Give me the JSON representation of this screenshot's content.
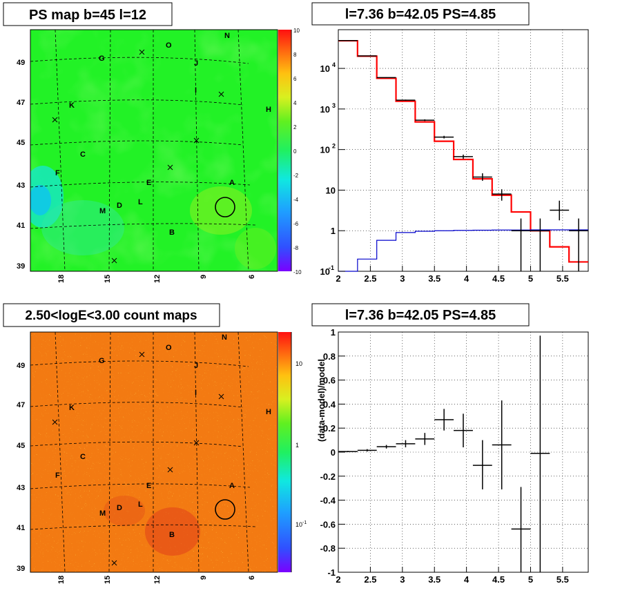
{
  "panels": {
    "ps_map_title": "PS map b=45 l=12",
    "count_map_title": "2.50<logE<3.00 count maps",
    "spectrum_title": "l=7.36 b=42.05 PS=4.85",
    "residual_title": "l=7.36 b=42.05 PS=4.85"
  },
  "colors": {
    "model": "#ff0000",
    "data": "#000000",
    "background_model": "#0000cc",
    "grid": "#000000",
    "ps_map_field": "#1cf21c",
    "count_map_field": "#f06a10"
  },
  "chart_data": [
    {
      "type": "heatmap",
      "id": "ps_map",
      "title": "PS map b=45 l=12",
      "x_ticks": [
        "18",
        "15",
        "12",
        "9",
        "6"
      ],
      "y_ticks": [
        "39",
        "41",
        "43",
        "45",
        "47",
        "49"
      ],
      "colorbar": {
        "range": [
          -10,
          10
        ],
        "ticks": [
          "10",
          "8",
          "6",
          "4",
          "2",
          "0",
          "-2",
          "-4",
          "-6",
          "-8",
          "-10"
        ]
      },
      "markers": [
        "N",
        "O",
        "G",
        "J",
        "I",
        "K",
        "H",
        "C",
        "F",
        "A",
        "E",
        "L",
        "D",
        "M",
        "B"
      ],
      "crosses": 9,
      "circle_marker": "A"
    },
    {
      "type": "heatmap",
      "id": "count_map",
      "title": "2.50<logE<3.00 count maps",
      "x_ticks": [
        "18",
        "15",
        "12",
        "9",
        "6"
      ],
      "y_ticks": [
        "39",
        "41",
        "43",
        "45",
        "47",
        "49"
      ],
      "colorbar": {
        "scale": "log",
        "ticks": [
          "10",
          "1",
          "10^-1"
        ]
      },
      "markers": [
        "N",
        "O",
        "G",
        "J",
        "I",
        "K",
        "H",
        "C",
        "F",
        "A",
        "E",
        "L",
        "D",
        "M",
        "B"
      ],
      "crosses": 9,
      "circle_marker": "A"
    },
    {
      "type": "line",
      "id": "spectrum",
      "title": "l=7.36 b=42.05 PS=4.85",
      "xlim": [
        2,
        5.9
      ],
      "ylim": [
        0.1,
        90000
      ],
      "yscale": "log",
      "x_ticks": [
        "2",
        "2.5",
        "3",
        "3.5",
        "4",
        "4.5",
        "5",
        "5.5"
      ],
      "y_ticks": [
        {
          "base": "10",
          "exp": "-1"
        },
        {
          "base": "1",
          "exp": ""
        },
        {
          "base": "10",
          "exp": ""
        },
        {
          "base": "10",
          "exp": "2"
        },
        {
          "base": "10",
          "exp": "3"
        },
        {
          "base": "10",
          "exp": "4"
        }
      ],
      "grid": true,
      "bin_edges": [
        2.0,
        2.3,
        2.6,
        2.9,
        3.2,
        3.5,
        3.8,
        4.1,
        4.4,
        4.7,
        5.0,
        5.3,
        5.6,
        5.9
      ],
      "series": [
        {
          "name": "",
          "style": "step",
          "color": "#ff0000",
          "values": [
            48000,
            20000,
            5700,
            1550,
            480,
            160,
            57,
            19,
            7.5,
            2.9,
            1.0,
            0.4,
            0.17
          ]
        },
        {
          "name": "",
          "style": "step",
          "color": "#0000cc",
          "values": [
            0.1,
            0.2,
            0.58,
            0.9,
            0.97,
            1.0,
            1.02,
            1.03,
            1.04,
            1.04,
            1.05,
            1.05,
            1.05
          ]
        }
      ],
      "data_points": [
        {
          "x": 2.15,
          "y": 48500,
          "lo": 48000,
          "hi": 49000
        },
        {
          "x": 2.45,
          "y": 20300,
          "lo": 20000,
          "hi": 20600
        },
        {
          "x": 2.75,
          "y": 5950,
          "lo": 5850,
          "hi": 6050
        },
        {
          "x": 3.05,
          "y": 1650,
          "lo": 1600,
          "hi": 1700
        },
        {
          "x": 3.35,
          "y": 530,
          "lo": 505,
          "hi": 555
        },
        {
          "x": 3.65,
          "y": 203,
          "lo": 188,
          "hi": 218
        },
        {
          "x": 3.95,
          "y": 67,
          "lo": 59,
          "hi": 75
        },
        {
          "x": 4.25,
          "y": 21,
          "lo": 17,
          "hi": 26
        },
        {
          "x": 4.55,
          "y": 8,
          "lo": 5.5,
          "hi": 10.5
        },
        {
          "x": 4.85,
          "y": 1,
          "lo": 0.1,
          "hi": 2.0
        },
        {
          "x": 5.15,
          "y": 1,
          "lo": 0.1,
          "hi": 2.0
        },
        {
          "x": 5.45,
          "y": 3.2,
          "lo": 1.8,
          "hi": 5.5
        },
        {
          "x": 5.75,
          "y": 1,
          "lo": 0.1,
          "hi": 2.0
        }
      ]
    },
    {
      "type": "scatter",
      "id": "residual",
      "title": "l=7.36 b=42.05 PS=4.85",
      "ylabel": "(data-model)/model",
      "xlim": [
        2,
        5.9
      ],
      "ylim": [
        -1,
        1
      ],
      "x_ticks": [
        "2",
        "2.5",
        "3",
        "3.5",
        "4",
        "4.5",
        "5",
        "5.5"
      ],
      "y_ticks": [
        "1",
        "0.8",
        "0.6",
        "0.4",
        "0.2",
        "0",
        "-0.2",
        "-0.4",
        "-0.6",
        "-0.8",
        "-1"
      ],
      "grid": true,
      "bin_edges": [
        2.0,
        2.3,
        2.6,
        2.9,
        3.2,
        3.5,
        3.8,
        4.1,
        4.4,
        4.7,
        5.0,
        5.3
      ],
      "points": [
        {
          "x": 2.15,
          "y": 0.005,
          "lo": 0.0,
          "hi": 0.01
        },
        {
          "x": 2.45,
          "y": 0.015,
          "lo": 0.005,
          "hi": 0.025
        },
        {
          "x": 2.75,
          "y": 0.045,
          "lo": 0.03,
          "hi": 0.06
        },
        {
          "x": 3.05,
          "y": 0.07,
          "lo": 0.04,
          "hi": 0.1
        },
        {
          "x": 3.35,
          "y": 0.11,
          "lo": 0.06,
          "hi": 0.16
        },
        {
          "x": 3.65,
          "y": 0.27,
          "lo": 0.18,
          "hi": 0.36
        },
        {
          "x": 3.95,
          "y": 0.18,
          "lo": 0.04,
          "hi": 0.32
        },
        {
          "x": 4.25,
          "y": -0.11,
          "lo": -0.31,
          "hi": 0.1
        },
        {
          "x": 4.55,
          "y": 0.06,
          "lo": -0.31,
          "hi": 0.43
        },
        {
          "x": 4.85,
          "y": -0.64,
          "lo": -1.0,
          "hi": -0.29
        },
        {
          "x": 5.15,
          "y": -0.01,
          "lo": -1.0,
          "hi": 0.97
        }
      ]
    }
  ]
}
